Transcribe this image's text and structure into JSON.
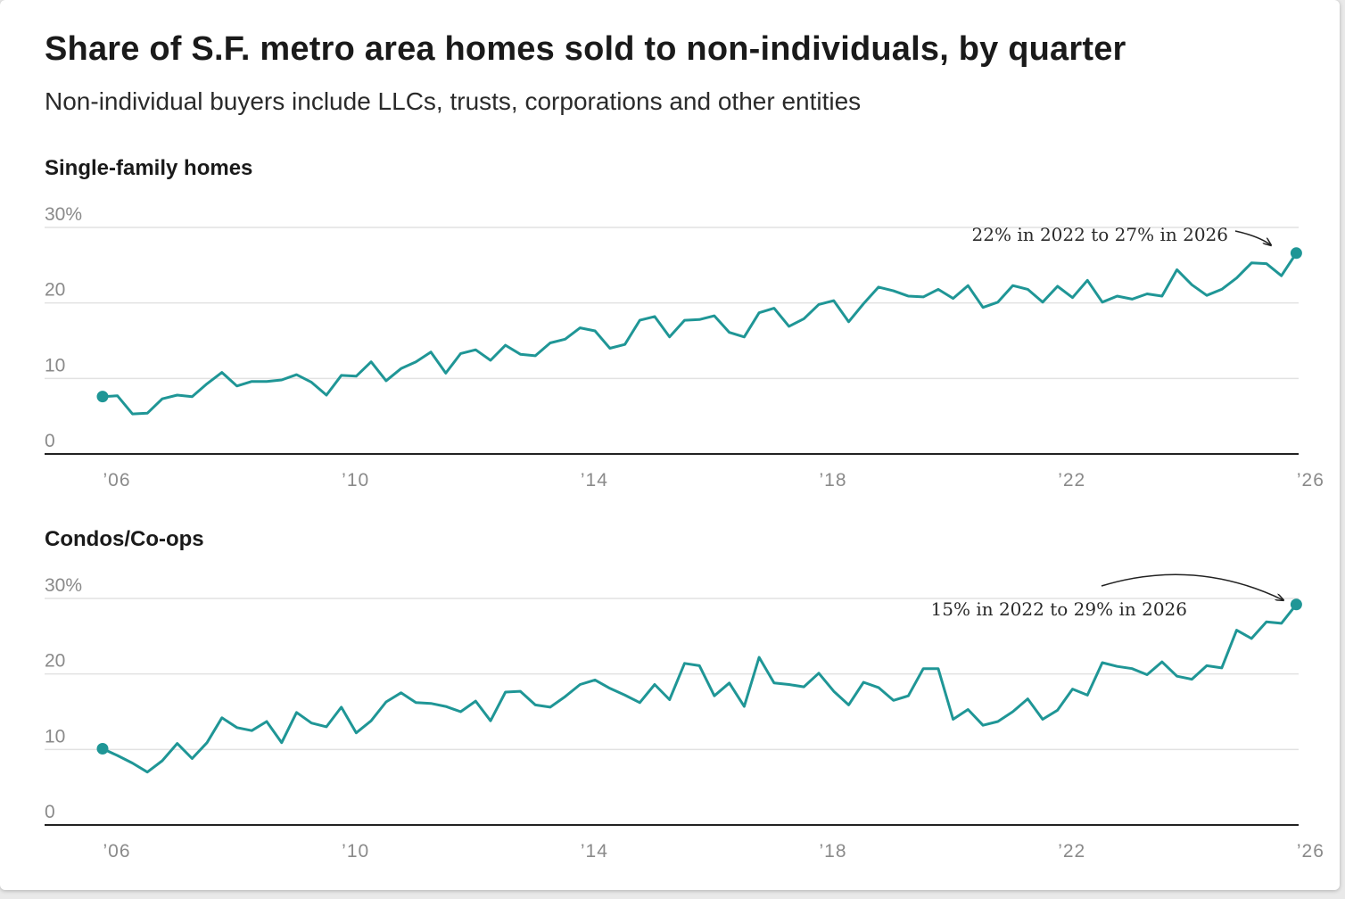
{
  "title": "Share of S.F. metro area homes sold to non-individuals, by quarter",
  "subtitle": "Non-individual buyers include LLCs, trusts, corporations and other entities",
  "colors": {
    "line": "#1f9696",
    "grid": "#e2e2e2",
    "axis": "#222222",
    "text": "#1a1a1a",
    "tick": "#8a8a8a"
  },
  "chart_data": [
    {
      "type": "line",
      "title": "Single-family homes",
      "xlabel": "",
      "ylabel": "",
      "ylim": [
        0,
        30
      ],
      "yticks": [
        0,
        10,
        20,
        30
      ],
      "ytick_labels": [
        "0",
        "10",
        "20",
        "30%"
      ],
      "xticks": [
        2006,
        2010,
        2014,
        2018,
        2022,
        2026
      ],
      "xtick_labels": [
        "’06",
        "’10",
        "’14",
        "’18",
        "’22",
        "’26"
      ],
      "grid": true,
      "annotation": "22% in 2022 to 27% in 2026",
      "x_start": "2006 Q1",
      "x_step": "quarter",
      "series": [
        {
          "values": [
            7.6,
            7.7,
            5.3,
            5.4,
            7.3,
            7.8,
            7.6,
            9.3,
            10.8,
            9.0,
            9.6,
            9.6,
            9.8,
            10.5,
            9.5,
            7.8,
            10.4,
            10.3,
            12.2,
            9.7,
            11.3,
            12.2,
            13.5,
            10.7,
            13.3,
            13.8,
            12.4,
            14.4,
            13.2,
            13.0,
            14.7,
            15.2,
            16.7,
            16.3,
            14.0,
            14.5,
            17.7,
            18.2,
            15.5,
            17.7,
            17.8,
            18.3,
            16.1,
            15.5,
            18.7,
            19.3,
            16.9,
            17.9,
            19.8,
            20.3,
            17.5,
            19.9,
            22.1,
            21.6,
            20.9,
            20.8,
            21.8,
            20.6,
            22.3,
            19.4,
            20.1,
            22.3,
            21.8,
            20.1,
            22.2,
            20.7,
            23.0,
            20.1,
            20.9,
            20.5,
            21.2,
            20.9,
            24.4,
            22.4,
            21.0,
            21.8,
            23.3,
            25.3,
            25.2,
            23.6,
            26.6
          ]
        }
      ]
    },
    {
      "type": "line",
      "title": "Condos/Co-ops",
      "xlabel": "",
      "ylabel": "",
      "ylim": [
        0,
        30
      ],
      "yticks": [
        0,
        10,
        20,
        30
      ],
      "ytick_labels": [
        "0",
        "10",
        "20",
        "30%"
      ],
      "xticks": [
        2006,
        2010,
        2014,
        2018,
        2022,
        2026
      ],
      "xtick_labels": [
        "’06",
        "’10",
        "’14",
        "’18",
        "’22",
        "’26"
      ],
      "grid": true,
      "annotation": "15% in 2022 to 29% in 2026",
      "x_start": "2006 Q1",
      "x_step": "quarter",
      "series": [
        {
          "values": [
            10.1,
            9.2,
            8.2,
            7.0,
            8.5,
            10.8,
            8.8,
            10.9,
            14.2,
            12.9,
            12.5,
            13.7,
            10.9,
            14.9,
            13.5,
            13.0,
            15.6,
            12.2,
            13.8,
            16.3,
            17.5,
            16.2,
            16.1,
            15.7,
            15.0,
            16.4,
            13.8,
            17.6,
            17.7,
            15.9,
            15.6,
            17.0,
            18.6,
            19.2,
            18.1,
            17.2,
            16.2,
            18.6,
            16.6,
            21.4,
            21.1,
            17.1,
            18.8,
            15.7,
            22.2,
            18.8,
            18.6,
            18.3,
            20.1,
            17.7,
            15.9,
            18.9,
            18.2,
            16.5,
            17.1,
            20.7,
            20.7,
            14.0,
            15.3,
            13.2,
            13.7,
            15.0,
            16.7,
            14.0,
            15.2,
            18.0,
            17.2,
            21.5,
            21.0,
            20.7,
            19.9,
            21.6,
            19.7,
            19.3,
            21.1,
            20.8,
            25.8,
            24.7,
            26.9,
            26.7,
            29.2
          ]
        }
      ]
    }
  ]
}
